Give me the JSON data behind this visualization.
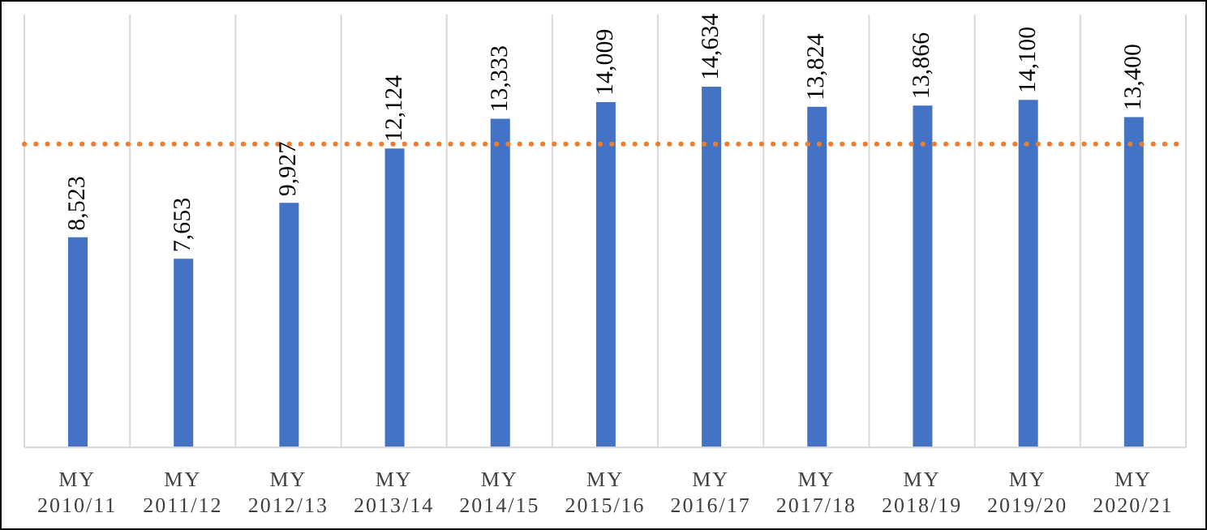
{
  "chart_data": {
    "type": "bar",
    "categories": [
      "MY 2010/11",
      "MY 2011/12",
      "MY 2012/13",
      "MY 2013/14",
      "MY 2014/15",
      "MY 2015/16",
      "MY 2016/17",
      "MY 2017/18",
      "MY 2018/19",
      "MY 2019/20",
      "MY 2020/21"
    ],
    "values": [
      8523,
      7653,
      9927,
      12124,
      13333,
      14009,
      14634,
      13824,
      13866,
      14100,
      13400
    ],
    "value_labels": [
      "8,523",
      "7,653",
      "9,927",
      "12,124",
      "13,333",
      "14,009",
      "14,634",
      "13,824",
      "13,866",
      "14,100",
      "13,400"
    ],
    "color": "#4472c4",
    "grid": "x",
    "ref_lines": [
      {
        "axis": "y",
        "value": 12308,
        "color": "#ed7d31",
        "line_style": "dotted"
      }
    ]
  }
}
